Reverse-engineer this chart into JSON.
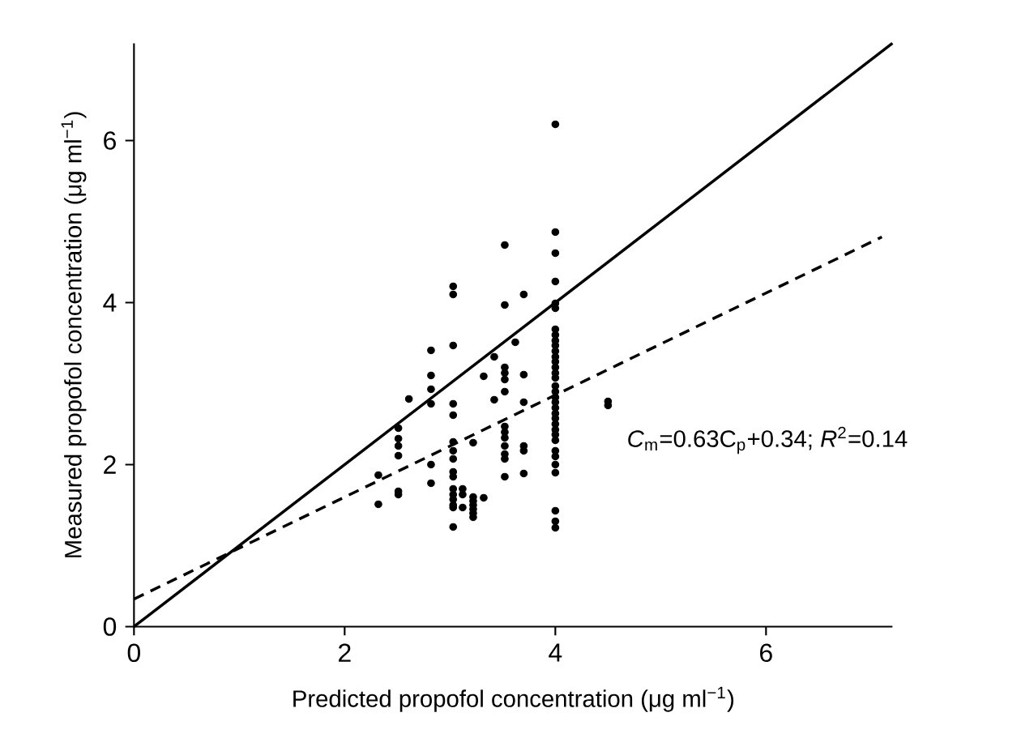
{
  "chart_data": {
    "type": "scatter",
    "xlabel": "Predicted propofol concentration (μg ml$^{−1}$)",
    "ylabel": "Measured propofol concentration (μg ml$^{−1}$)",
    "xlim": [
      0,
      7.2
    ],
    "ylim": [
      0,
      7.2
    ],
    "xticks": [
      0,
      2,
      4,
      6
    ],
    "yticks": [
      0,
      2,
      4,
      6
    ],
    "annotations": [
      "*C*$_{m}$=0.63C$_{p}$+0.34; *R*$^{2}$=0.14"
    ],
    "series": [
      {
        "color": "#000000",
        "marker": "circle",
        "x": [
          2.32,
          2.32,
          2.51,
          2.51,
          2.51,
          2.51,
          2.51,
          2.51,
          2.61,
          2.82,
          2.82,
          2.82,
          2.82,
          2.82,
          2.82,
          3.03,
          3.03,
          3.03,
          3.03,
          3.03,
          3.03,
          3.03,
          3.03,
          3.03,
          3.03,
          3.03,
          3.03,
          3.03,
          3.03,
          3.03,
          3.03,
          3.12,
          3.12,
          3.12,
          3.22,
          3.22,
          3.22,
          3.22,
          3.22,
          3.22,
          3.22,
          3.32,
          3.32,
          3.42,
          3.42,
          3.52,
          3.52,
          3.52,
          3.52,
          3.52,
          3.52,
          3.52,
          3.52,
          3.52,
          3.52,
          3.52,
          3.52,
          3.52,
          3.62,
          3.7,
          3.7,
          3.7,
          3.7,
          3.7,
          3.7,
          4,
          4,
          4,
          4,
          4,
          4,
          4,
          4,
          4,
          4,
          4,
          4,
          4,
          4,
          4,
          4,
          4,
          4,
          4,
          4,
          4,
          4,
          4,
          4,
          4,
          4,
          4,
          4,
          4,
          4,
          4,
          4,
          4,
          4,
          4.5,
          4.5
        ],
        "values": [
          1.87,
          1.51,
          2.45,
          2.32,
          2.23,
          2.11,
          1.67,
          1.63,
          2.81,
          3.41,
          3.1,
          2.93,
          2.75,
          2.0,
          1.77,
          4.2,
          4.1,
          3.47,
          2.75,
          2.61,
          2.28,
          2.17,
          2.07,
          1.91,
          1.85,
          1.7,
          1.63,
          1.57,
          1.5,
          1.47,
          1.23,
          1.7,
          1.63,
          1.47,
          2.27,
          1.6,
          1.55,
          1.5,
          1.45,
          1.4,
          1.35,
          1.59,
          3.09,
          3.33,
          2.8,
          4.71,
          3.97,
          3.2,
          3.13,
          3.05,
          2.9,
          2.47,
          2.4,
          2.33,
          2.23,
          2.13,
          2.07,
          1.85,
          3.51,
          4.1,
          3.11,
          2.77,
          2.23,
          2.17,
          1.89,
          6.2,
          4.87,
          4.61,
          4.26,
          3.99,
          3.93,
          3.67,
          3.6,
          3.53,
          3.47,
          3.4,
          3.33,
          3.27,
          3.2,
          3.13,
          3.07,
          2.97,
          2.9,
          2.83,
          2.77,
          2.7,
          2.63,
          2.57,
          2.5,
          2.43,
          2.37,
          2.3,
          2.17,
          2.1,
          2.0,
          1.9,
          1.43,
          1.3,
          1.22,
          2.78,
          2.73
        ]
      },
      {
        "type": "line",
        "color": "#000000",
        "marker": "none",
        "line_style": "solid",
        "x": [
          0,
          7.2
        ],
        "values": [
          0,
          7.2
        ]
      },
      {
        "type": "line",
        "color": "#000000",
        "marker": "none",
        "line_style": "dashed",
        "x": [
          0,
          7.1
        ],
        "values": [
          0.34,
          4.81
        ]
      }
    ]
  }
}
